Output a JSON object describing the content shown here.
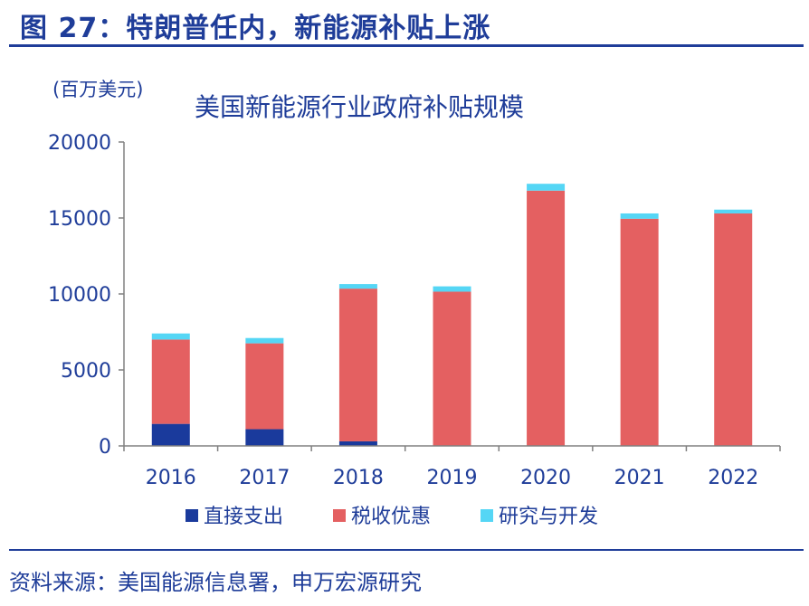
{
  "figure": {
    "title": "图 27：特朗普任内，新能源补贴上涨",
    "source": "资料来源：美国能源信息署，申万宏源研究"
  },
  "chart_data": {
    "type": "bar",
    "stacked": true,
    "title": "美国新能源行业政府补贴规模",
    "unit_label": "(百万美元)",
    "categories": [
      "2016",
      "2017",
      "2018",
      "2019",
      "2020",
      "2021",
      "2022"
    ],
    "series": [
      {
        "name": "直接支出",
        "color": "#1a3a9c",
        "values": [
          1450,
          1100,
          300,
          0,
          0,
          0,
          0
        ]
      },
      {
        "name": "税收优惠",
        "color": "#e46061",
        "values": [
          5550,
          5650,
          10050,
          10150,
          16800,
          14950,
          15300
        ]
      },
      {
        "name": "研究与开发",
        "color": "#55d6f5",
        "values": [
          400,
          350,
          300,
          350,
          450,
          350,
          250
        ]
      }
    ],
    "ylim": [
      0,
      20000
    ],
    "yticks": [
      "0",
      "5000",
      "10000",
      "15000",
      "20000"
    ],
    "grid": false,
    "legend_position": "bottom"
  }
}
